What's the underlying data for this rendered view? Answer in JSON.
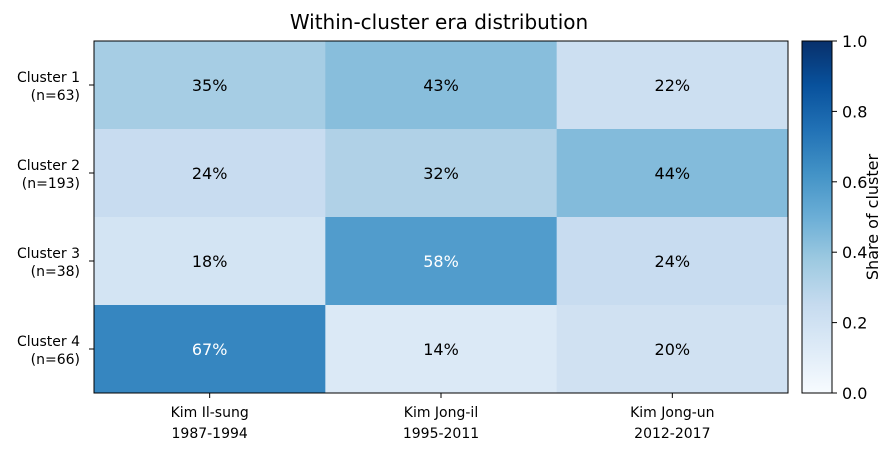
{
  "chart_data": {
    "type": "heatmap",
    "title": "Within-cluster era distribution",
    "rows": [
      {
        "name": "Cluster 1",
        "count": "(n=63)"
      },
      {
        "name": "Cluster 2",
        "count": "(n=193)"
      },
      {
        "name": "Cluster 3",
        "count": "(n=38)"
      },
      {
        "name": "Cluster 4",
        "count": "(n=66)"
      }
    ],
    "columns": [
      {
        "name": "Kim Il-sung",
        "years": "1987-1994"
      },
      {
        "name": "Kim Jong-il",
        "years": "1995-2011"
      },
      {
        "name": "Kim Jong-un",
        "years": "2012-2017"
      }
    ],
    "values": [
      [
        0.35,
        0.43,
        0.22
      ],
      [
        0.24,
        0.32,
        0.44
      ],
      [
        0.18,
        0.58,
        0.24
      ],
      [
        0.67,
        0.14,
        0.2
      ]
    ],
    "cell_labels": [
      [
        "35%",
        "43%",
        "22%"
      ],
      [
        "24%",
        "32%",
        "44%"
      ],
      [
        "18%",
        "58%",
        "24%"
      ],
      [
        "67%",
        "14%",
        "20%"
      ]
    ],
    "colorbar": {
      "label": "Share of cluster",
      "range": [
        0.0,
        1.0
      ],
      "ticks": [
        "0.0",
        "0.2",
        "0.4",
        "0.6",
        "0.8",
        "1.0"
      ],
      "colormap": "Blues"
    }
  }
}
